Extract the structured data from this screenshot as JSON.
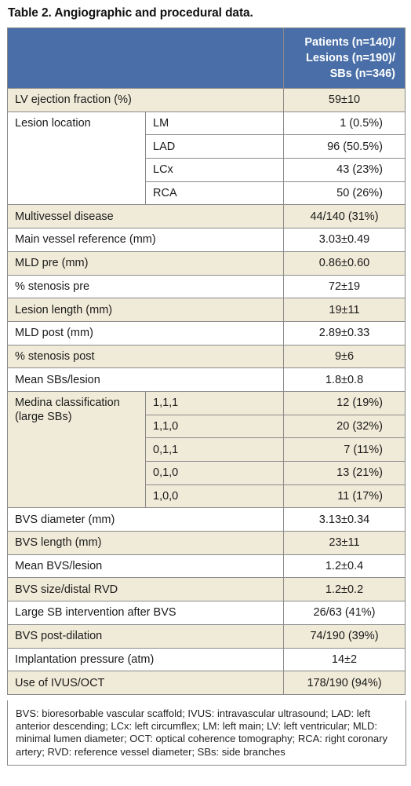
{
  "title": "Table 2. Angiographic and procedural data.",
  "header": {
    "line1": "Patients (n=140)/",
    "line2": "Lesions (n=190)/",
    "line3": "SBs (n=346)"
  },
  "rows": {
    "lv": {
      "label": "LV ejection fraction (%)",
      "value": "59±10"
    },
    "location": {
      "label": "Lesion location",
      "items": [
        {
          "sub": "LM",
          "value": "1 (0.5%)"
        },
        {
          "sub": "LAD",
          "value": "96 (50.5%)"
        },
        {
          "sub": "LCx",
          "value": "43 (23%)"
        },
        {
          "sub": "RCA",
          "value": "50 (26%)"
        }
      ]
    },
    "multivessel": {
      "label": "Multivessel disease",
      "value": "44/140 (31%)"
    },
    "mvref": {
      "label": "Main vessel reference (mm)",
      "value": "3.03±0.49"
    },
    "mldpre": {
      "label": "MLD pre (mm)",
      "value": "0.86±0.60"
    },
    "stenpre": {
      "label": "% stenosis pre",
      "value": "72±19"
    },
    "length": {
      "label": "Lesion length (mm)",
      "value": "19±11"
    },
    "mldpost": {
      "label": "MLD post (mm)",
      "value": "2.89±0.33"
    },
    "stenpost": {
      "label": "% stenosis post",
      "value": "9±6"
    },
    "meansb": {
      "label": "Mean SBs/lesion",
      "value": "1.8±0.8"
    },
    "medina": {
      "label1": "Medina classification",
      "label2": "(large SBs)",
      "items": [
        {
          "sub": "1,1,1",
          "value": "12 (19%)"
        },
        {
          "sub": "1,1,0",
          "value": "20 (32%)"
        },
        {
          "sub": "0,1,1",
          "value": "7 (11%)"
        },
        {
          "sub": "0,1,0",
          "value": "13 (21%)"
        },
        {
          "sub": "1,0,0",
          "value": "11 (17%)"
        }
      ]
    },
    "bvsdiam": {
      "label": "BVS diameter (mm)",
      "value": "3.13±0.34"
    },
    "bvslen": {
      "label": "BVS length (mm)",
      "value": "23±11"
    },
    "meanbvs": {
      "label": "Mean BVS/lesion",
      "value": "1.2±0.4"
    },
    "bvsrvd": {
      "label": "BVS size/distal RVD",
      "value": "1.2±0.2"
    },
    "largesb": {
      "label": "Large SB intervention after BVS",
      "value": "26/63 (41%)"
    },
    "postdil": {
      "label": "BVS post-dilation",
      "value": "74/190 (39%)"
    },
    "pressure": {
      "label": "Implantation pressure (atm)",
      "value": "14±2"
    },
    "ivus": {
      "label": "Use of IVUS/OCT",
      "value": "178/190 (94%)"
    }
  },
  "footnote": "BVS: bioresorbable vascular scaffold; IVUS: intravascular ultrasound; LAD: left anterior descending; LCx: left circumflex; LM: left main; LV: left ventricular; MLD: minimal lumen diameter; OCT: optical coherence tomography; RCA: right coronary artery; RVD: reference vessel diameter; SBs: side branches"
}
